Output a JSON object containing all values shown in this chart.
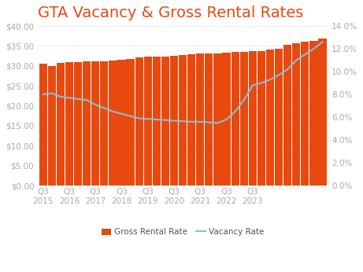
{
  "title": "GTA Vacancy & Gross Rental Rates",
  "title_fontsize": 14,
  "title_color": "#E8490F",
  "bar_color": "#E8490F",
  "line_color": "#8BBCD4",
  "background_color": "#FFFFFF",
  "x_labels": [
    "Q3\n2015",
    "Q3\n2016",
    "Q3\n2017",
    "Q3\n2018",
    "Q3\n2019",
    "Q3\n2020",
    "Q3\n2021",
    "Q3\n2022",
    "Q3\n2023"
  ],
  "x_label_indices": [
    0,
    3,
    6,
    9,
    12,
    15,
    18,
    21,
    24
  ],
  "quarters_count": 33,
  "gross_rental": [
    30.5,
    30.0,
    30.8,
    31.0,
    31.0,
    31.1,
    31.2,
    31.2,
    31.3,
    31.5,
    31.8,
    32.2,
    32.3,
    32.3,
    32.4,
    32.5,
    32.8,
    33.0,
    33.2,
    33.2,
    33.2,
    33.3,
    33.5,
    33.5,
    33.7,
    33.8,
    34.2,
    34.3,
    35.3,
    35.7,
    36.0,
    36.3,
    36.8
  ],
  "vacancy": [
    8.0,
    8.1,
    7.8,
    7.7,
    7.6,
    7.5,
    7.1,
    6.8,
    6.5,
    6.3,
    6.1,
    5.9,
    5.85,
    5.8,
    5.75,
    5.7,
    5.65,
    5.6,
    5.6,
    5.55,
    5.5,
    5.8,
    6.5,
    7.5,
    8.8,
    9.0,
    9.3,
    9.7,
    10.2,
    11.0,
    11.5,
    12.0,
    12.6
  ],
  "ylim_left": [
    0,
    40
  ],
  "ylim_right": [
    0,
    14
  ],
  "yticks_left": [
    0,
    5,
    10,
    15,
    20,
    25,
    30,
    35,
    40
  ],
  "yticks_right": [
    0.0,
    2.0,
    4.0,
    6.0,
    8.0,
    10.0,
    12.0,
    14.0
  ],
  "legend_labels": [
    "Gross Rental Rate",
    "Vacancy Rate"
  ],
  "grid_color": "#E8E8E8",
  "tick_label_color": "#AAAAAA",
  "tick_label_fontsize": 7.5
}
